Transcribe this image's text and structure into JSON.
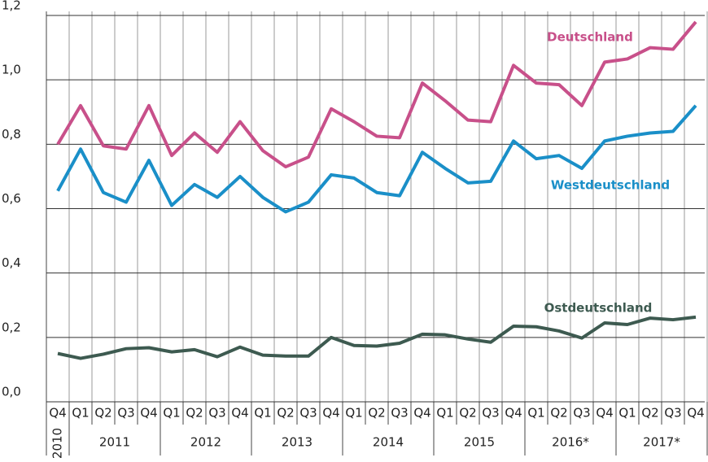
{
  "chart_data": {
    "type": "line",
    "categories": [
      "Q4",
      "Q1",
      "Q2",
      "Q3",
      "Q4",
      "Q1",
      "Q2",
      "Q3",
      "Q4",
      "Q1",
      "Q2",
      "Q3",
      "Q4",
      "Q1",
      "Q2",
      "Q3",
      "Q4",
      "Q1",
      "Q2",
      "Q3",
      "Q4",
      "Q1",
      "Q2",
      "Q3",
      "Q4",
      "Q1",
      "Q2",
      "Q3",
      "Q4"
    ],
    "years": [
      "2010",
      "2011",
      "2012",
      "2013",
      "2014",
      "2015",
      "2016*",
      "2017*"
    ],
    "series": [
      {
        "name": "Deutschland",
        "color": "#c8508a",
        "values": [
          0.8,
          0.92,
          0.795,
          0.785,
          0.92,
          0.765,
          0.835,
          0.775,
          0.87,
          0.78,
          0.73,
          0.76,
          0.91,
          0.87,
          0.825,
          0.82,
          0.99,
          0.935,
          0.875,
          0.87,
          1.045,
          0.99,
          0.985,
          0.92,
          1.055,
          1.065,
          1.1,
          1.095,
          1.18
        ]
      },
      {
        "name": "Westdeutschland",
        "color": "#1a8fc8",
        "values": [
          0.655,
          0.785,
          0.65,
          0.62,
          0.75,
          0.61,
          0.675,
          0.635,
          0.7,
          0.635,
          0.59,
          0.62,
          0.705,
          0.695,
          0.65,
          0.64,
          0.775,
          0.725,
          0.68,
          0.685,
          0.81,
          0.755,
          0.765,
          0.725,
          0.81,
          0.825,
          0.835,
          0.84,
          0.92
        ]
      },
      {
        "name": "Ostdeutschland",
        "color": "#3d5a50",
        "values": [
          0.15,
          0.135,
          0.148,
          0.165,
          0.168,
          0.155,
          0.162,
          0.14,
          0.17,
          0.145,
          0.142,
          0.142,
          0.2,
          0.175,
          0.173,
          0.182,
          0.21,
          0.208,
          0.195,
          0.185,
          0.235,
          0.233,
          0.22,
          0.198,
          0.245,
          0.24,
          0.26,
          0.255,
          0.263
        ]
      }
    ],
    "ylim": [
      0,
      1.2
    ],
    "yticks": [
      {
        "value": 0,
        "label": "0,0"
      },
      {
        "value": 0.2,
        "label": "0,2"
      },
      {
        "value": 0.4,
        "label": "0,4"
      },
      {
        "value": 0.6,
        "label": "0,6"
      },
      {
        "value": 0.8,
        "label": "0,8"
      },
      {
        "value": 1.0,
        "label": "1,0"
      },
      {
        "value": 1.2,
        "label": "1,2"
      }
    ],
    "grid": true
  }
}
